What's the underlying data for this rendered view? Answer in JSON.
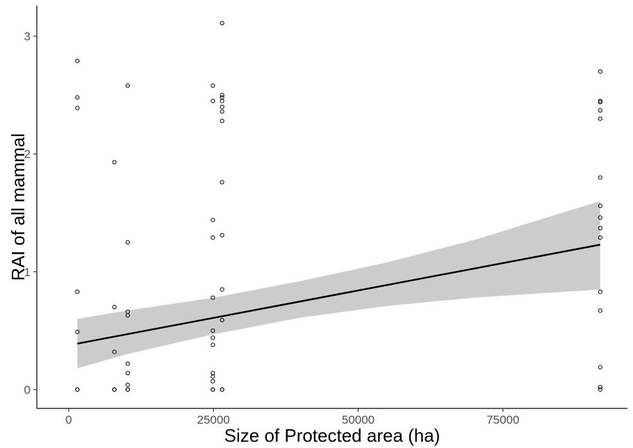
{
  "chart_data": {
    "type": "scatter",
    "xlabel": "Size of Protected area (ha)",
    "ylabel": "RAI of all mammal",
    "xlim": [
      -5500,
      96500
    ],
    "ylim": [
      -0.16,
      3.26
    ],
    "xticks": [
      0,
      25000,
      50000,
      75000
    ],
    "xtick_labels": [
      "0",
      "25000",
      "50000",
      "75000"
    ],
    "yticks": [
      0,
      1,
      2,
      3
    ],
    "ytick_labels": [
      "0",
      "1",
      "2",
      "3"
    ],
    "grid": false,
    "legend": "none",
    "points": [
      {
        "x": 1500,
        "y": 2.79
      },
      {
        "x": 1500,
        "y": 2.48
      },
      {
        "x": 1500,
        "y": 2.39
      },
      {
        "x": 1500,
        "y": 0.83
      },
      {
        "x": 1500,
        "y": 0.49
      },
      {
        "x": 1500,
        "y": 0.0
      },
      {
        "x": 1500,
        "y": 0.0
      },
      {
        "x": 7900,
        "y": 1.93
      },
      {
        "x": 7900,
        "y": 0.7
      },
      {
        "x": 7900,
        "y": 0.32
      },
      {
        "x": 7900,
        "y": 0.0
      },
      {
        "x": 7900,
        "y": 0.0
      },
      {
        "x": 7900,
        "y": 0.0
      },
      {
        "x": 10200,
        "y": 2.58
      },
      {
        "x": 10200,
        "y": 1.25
      },
      {
        "x": 10200,
        "y": 0.66
      },
      {
        "x": 10200,
        "y": 0.63
      },
      {
        "x": 10200,
        "y": 0.22
      },
      {
        "x": 10200,
        "y": 0.14
      },
      {
        "x": 10200,
        "y": 0.04
      },
      {
        "x": 10200,
        "y": 0.0
      },
      {
        "x": 10200,
        "y": 0.0
      },
      {
        "x": 24900,
        "y": 2.58
      },
      {
        "x": 24900,
        "y": 2.45
      },
      {
        "x": 24900,
        "y": 1.44
      },
      {
        "x": 24900,
        "y": 1.29
      },
      {
        "x": 24900,
        "y": 0.78
      },
      {
        "x": 24900,
        "y": 0.5
      },
      {
        "x": 24900,
        "y": 0.44
      },
      {
        "x": 24900,
        "y": 0.38
      },
      {
        "x": 24900,
        "y": 0.14
      },
      {
        "x": 24900,
        "y": 0.11
      },
      {
        "x": 24900,
        "y": 0.07
      },
      {
        "x": 24900,
        "y": 0.0
      },
      {
        "x": 24900,
        "y": 0.0
      },
      {
        "x": 26500,
        "y": 3.11
      },
      {
        "x": 26500,
        "y": 2.5
      },
      {
        "x": 26500,
        "y": 2.48
      },
      {
        "x": 26500,
        "y": 2.45
      },
      {
        "x": 26500,
        "y": 2.4
      },
      {
        "x": 26500,
        "y": 2.36
      },
      {
        "x": 26500,
        "y": 2.28
      },
      {
        "x": 26500,
        "y": 1.76
      },
      {
        "x": 26500,
        "y": 1.31
      },
      {
        "x": 26500,
        "y": 0.85
      },
      {
        "x": 26500,
        "y": 0.59
      },
      {
        "x": 26500,
        "y": 0.0
      },
      {
        "x": 26500,
        "y": 0.0
      },
      {
        "x": 91800,
        "y": 2.7
      },
      {
        "x": 91800,
        "y": 2.45
      },
      {
        "x": 91800,
        "y": 2.44
      },
      {
        "x": 91800,
        "y": 2.37
      },
      {
        "x": 91800,
        "y": 2.3
      },
      {
        "x": 91800,
        "y": 1.8
      },
      {
        "x": 91800,
        "y": 1.56
      },
      {
        "x": 91800,
        "y": 1.46
      },
      {
        "x": 91800,
        "y": 1.37
      },
      {
        "x": 91800,
        "y": 1.29
      },
      {
        "x": 91800,
        "y": 0.83
      },
      {
        "x": 91800,
        "y": 0.67
      },
      {
        "x": 91800,
        "y": 0.19
      },
      {
        "x": 91800,
        "y": 0.02
      },
      {
        "x": 91800,
        "y": 0.0
      }
    ],
    "fit": {
      "method": "linear",
      "line": {
        "x": [
          1500,
          91800
        ],
        "y": [
          0.39,
          1.23
        ]
      },
      "ci_band": {
        "x": [
          1500,
          10000,
          25000,
          40000,
          55000,
          70000,
          91800
        ],
        "upper": [
          0.6,
          0.67,
          0.78,
          0.92,
          1.08,
          1.27,
          1.6
        ],
        "lower": [
          0.18,
          0.3,
          0.47,
          0.61,
          0.71,
          0.78,
          0.85
        ]
      }
    },
    "colors": {
      "band": "#cccccc",
      "line": "#000000",
      "point": "#000000"
    }
  }
}
